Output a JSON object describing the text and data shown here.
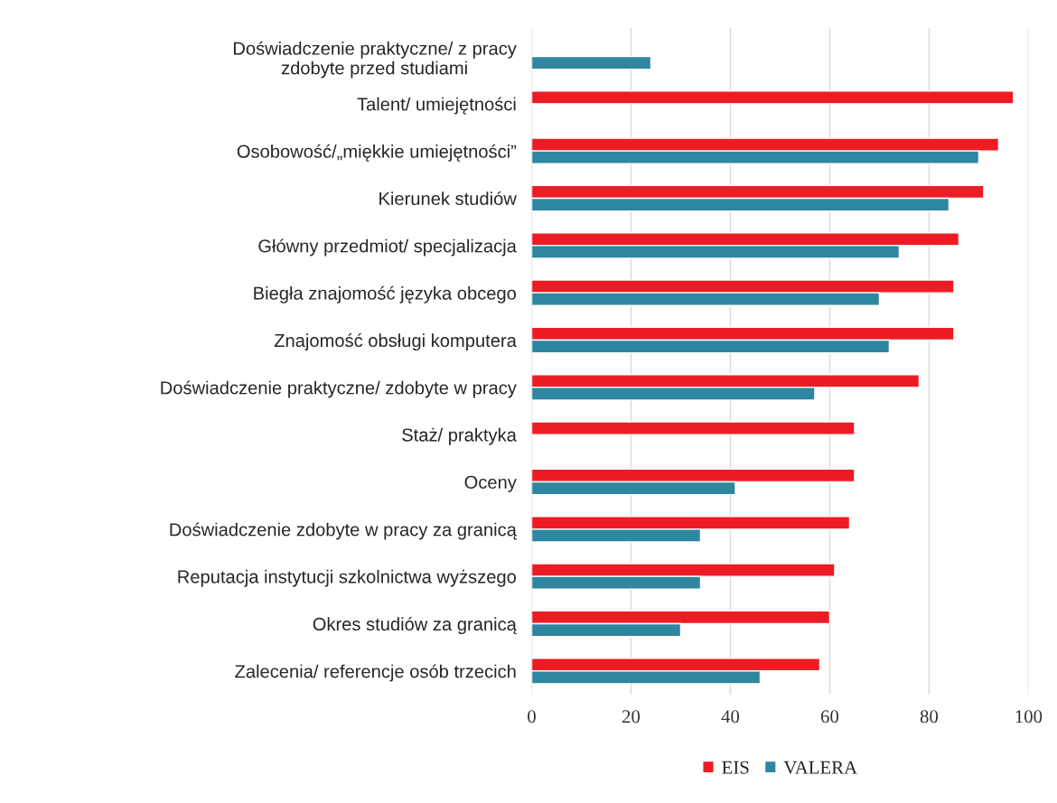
{
  "chart_data": {
    "type": "bar",
    "orientation": "horizontal",
    "categories": [
      "Doświadczenie praktyczne/ z pracy\nzdobyte przed studiami",
      "Talent/ umiejętności",
      "Osobowość/„miękkie umiejętności”",
      "Kierunek studiów",
      "Główny przedmiot/ specjalizacja",
      "Biegła znajomość języka obcego",
      "Znajomość obsługi komputera",
      "Doświadczenie praktyczne/ zdobyte w pracy",
      "Staż/ praktyka",
      "Oceny",
      "Doświadczenie zdobyte w pracy za granicą",
      "Reputacja instytucji szkolnictwa wyższego",
      "Okres studiów za granicą",
      "Zalecenia/ referencje osób trzecich"
    ],
    "series": [
      {
        "name": "EIS",
        "color": "#ed1c24",
        "values": [
          null,
          97,
          94,
          91,
          86,
          85,
          85,
          78,
          65,
          65,
          64,
          61,
          60,
          58
        ]
      },
      {
        "name": "VALERA",
        "color": "#2e86a0",
        "values": [
          24,
          null,
          90,
          84,
          74,
          70,
          72,
          57,
          null,
          41,
          34,
          34,
          30,
          46
        ]
      }
    ],
    "xlim": [
      0,
      100
    ],
    "xticks": [
      0,
      20,
      40,
      60,
      80,
      100
    ],
    "grid": "x",
    "legend": "bottom"
  }
}
